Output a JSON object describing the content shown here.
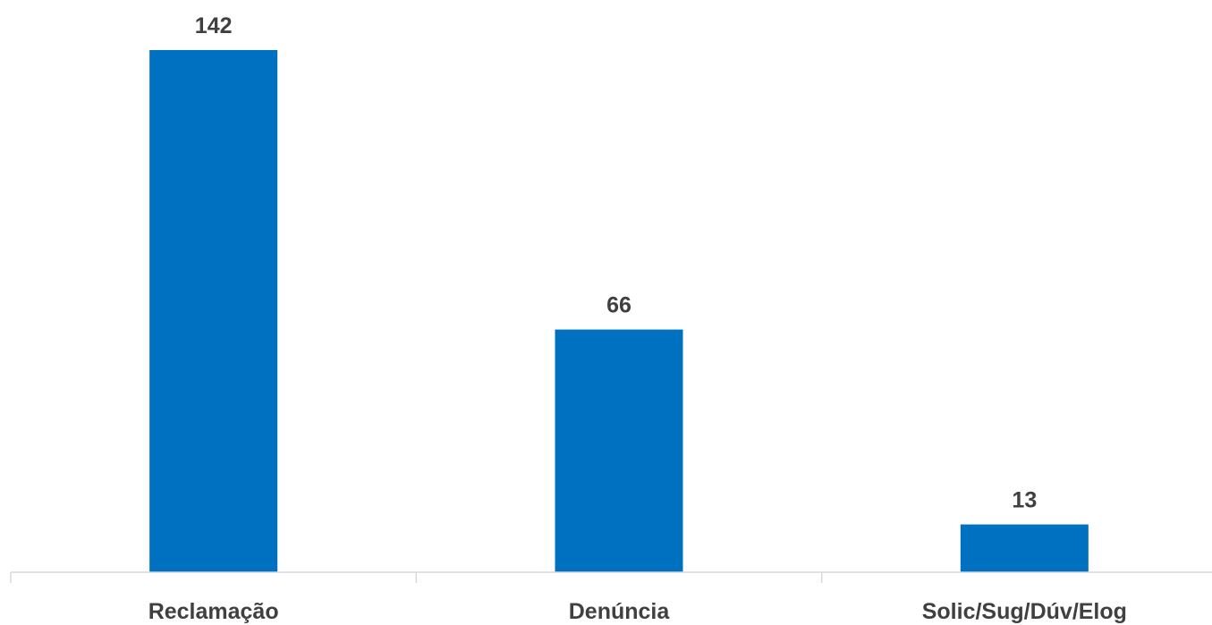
{
  "chart_data": {
    "type": "bar",
    "categories": [
      "Reclamação",
      "Denúncia",
      "Solic/Sug/Dúv/Elog"
    ],
    "values": [
      142,
      66,
      13
    ],
    "data_labels": [
      "142",
      "66",
      "13"
    ],
    "title": "",
    "xlabel": "",
    "ylabel": "",
    "ylim": [
      0,
      142
    ],
    "grid": false,
    "legend": "none",
    "bar_color": "#0070c0",
    "text_color": "#404040",
    "axis_color": "#d9d9d9"
  }
}
